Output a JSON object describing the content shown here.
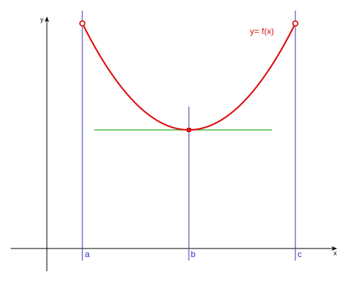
{
  "axes": {
    "x_label": "x",
    "y_label": "y"
  },
  "points": [
    {
      "label": "a"
    },
    {
      "label": "b"
    },
    {
      "label": "c"
    }
  ],
  "curve": {
    "label": "y= f(x)"
  }
}
